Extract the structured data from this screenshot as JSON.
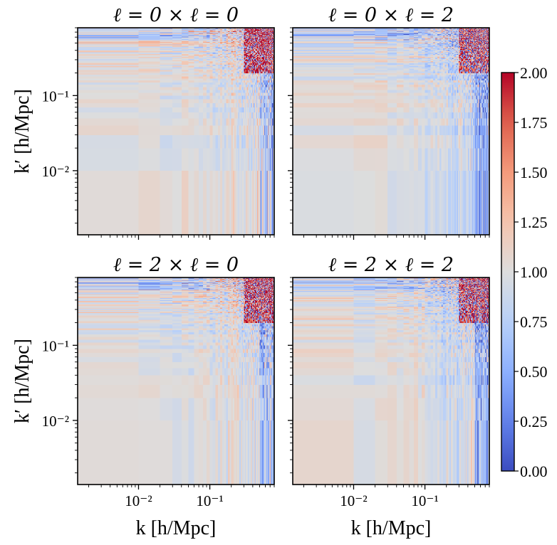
{
  "chart_data": {
    "type": "heatmap",
    "layout": "2x2 panels, shared axes",
    "panels": [
      {
        "title": "ℓ = 0 × ℓ = 0",
        "row": 0,
        "col": 0
      },
      {
        "title": "ℓ = 0 × ℓ = 2",
        "row": 0,
        "col": 1
      },
      {
        "title": "ℓ = 2 × ℓ = 0",
        "row": 1,
        "col": 0
      },
      {
        "title": "ℓ = 2 × ℓ = 2",
        "row": 1,
        "col": 1
      }
    ],
    "xlabel": "k [h/Mpc]",
    "ylabel": "k′ [h/Mpc]",
    "xscale": "log",
    "yscale": "log",
    "xlim": [
      0.0014,
      0.8
    ],
    "ylim": [
      0.0014,
      0.8
    ],
    "x_ticks": [
      {
        "value": 0.01,
        "label": "10⁻²"
      },
      {
        "value": 0.1,
        "label": "10⁻¹"
      }
    ],
    "y_ticks": [
      {
        "value": 0.01,
        "label": "10⁻²"
      },
      {
        "value": 0.1,
        "label": "10⁻¹"
      }
    ],
    "colorbar": {
      "cmap": "coolwarm",
      "vmin": 0.0,
      "vmax": 2.0,
      "ticks": [
        "0.00",
        "0.25",
        "0.50",
        "0.75",
        "1.00",
        "1.25",
        "1.50",
        "1.75",
        "2.00"
      ],
      "colors": {
        "low": "#3b4cc0",
        "mid": "#dddddd",
        "high": "#b40426"
      }
    }
  }
}
